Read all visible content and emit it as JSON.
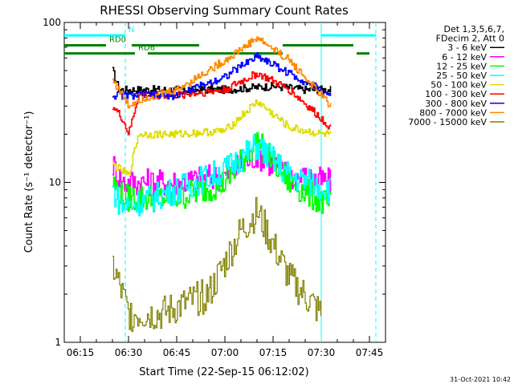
{
  "chart_data": {
    "type": "line",
    "title": "RHESSI Observing Summary Count Rates",
    "xlabel": "Start Time (22-Sep-15 06:12:02)",
    "ylabel": "Count Rate (s⁻¹ detector⁻¹)",
    "y_scale": "log",
    "ylim": [
      1,
      100
    ],
    "xlim": [
      "06:10",
      "07:50"
    ],
    "x_ticks": [
      "06:15",
      "06:30",
      "06:45",
      "07:00",
      "07:15",
      "07:30",
      "07:45"
    ],
    "y_ticks": [
      1,
      10,
      100
    ],
    "footer_date": "31-Oct-2021 10:42",
    "legend_position": "right",
    "legend_header": [
      "Det 1,3,5,6,7,",
      "FDecim 2, Att 0"
    ],
    "series": [
      {
        "name": "3 - 6 keV",
        "color": "#000000",
        "points": [
          [
            "06:25",
            50
          ],
          [
            "06:27",
            38
          ],
          [
            "06:33",
            38
          ],
          [
            "06:45",
            38
          ],
          [
            "07:00",
            38
          ],
          [
            "07:15",
            40
          ],
          [
            "07:25",
            38
          ],
          [
            "07:33",
            38
          ]
        ]
      },
      {
        "name": "6 - 12 keV",
        "color": "#ff00ff",
        "points": [
          [
            "06:25",
            13
          ],
          [
            "06:28",
            10
          ],
          [
            "06:45",
            10
          ],
          [
            "07:00",
            11
          ],
          [
            "07:10",
            15
          ],
          [
            "07:20",
            11
          ],
          [
            "07:33",
            10
          ]
        ]
      },
      {
        "name": "12 - 25 keV",
        "color": "#00ff00",
        "points": [
          [
            "06:25",
            10
          ],
          [
            "06:28",
            8
          ],
          [
            "06:45",
            8
          ],
          [
            "07:00",
            10
          ],
          [
            "07:10",
            18
          ],
          [
            "07:20",
            10
          ],
          [
            "07:33",
            7
          ]
        ]
      },
      {
        "name": "25 - 50 keV",
        "color": "#00ffff",
        "points": [
          [
            "06:25",
            9
          ],
          [
            "06:28",
            7
          ],
          [
            "06:45",
            9
          ],
          [
            "07:00",
            12
          ],
          [
            "07:10",
            17
          ],
          [
            "07:20",
            11
          ],
          [
            "07:33",
            9
          ]
        ]
      },
      {
        "name": "50 - 100 keV",
        "color": "#dddd00",
        "points": [
          [
            "06:25",
            13
          ],
          [
            "06:30",
            11
          ],
          [
            "06:33",
            20
          ],
          [
            "06:45",
            20
          ],
          [
            "07:00",
            21
          ],
          [
            "07:10",
            32
          ],
          [
            "07:20",
            22
          ],
          [
            "07:30",
            20
          ],
          [
            "07:33",
            20
          ]
        ]
      },
      {
        "name": "100 - 300 keV",
        "color": "#ff0000",
        "points": [
          [
            "06:25",
            30
          ],
          [
            "06:28",
            25
          ],
          [
            "06:30",
            20
          ],
          [
            "06:33",
            35
          ],
          [
            "06:45",
            35
          ],
          [
            "07:00",
            38
          ],
          [
            "07:10",
            48
          ],
          [
            "07:20",
            38
          ],
          [
            "07:30",
            25
          ],
          [
            "07:33",
            22
          ]
        ]
      },
      {
        "name": "300 - 800 keV",
        "color": "#0000ff",
        "points": [
          [
            "06:25",
            35
          ],
          [
            "06:33",
            35
          ],
          [
            "06:45",
            35
          ],
          [
            "07:00",
            46
          ],
          [
            "07:10",
            62
          ],
          [
            "07:20",
            48
          ],
          [
            "07:33",
            35
          ]
        ]
      },
      {
        "name": "800 - 7000 keV",
        "color": "#ff8800",
        "points": [
          [
            "06:25",
            44
          ],
          [
            "06:30",
            30
          ],
          [
            "06:33",
            33
          ],
          [
            "06:45",
            38
          ],
          [
            "07:00",
            58
          ],
          [
            "07:10",
            80
          ],
          [
            "07:20",
            58
          ],
          [
            "07:33",
            30
          ]
        ]
      },
      {
        "name": "7000 - 15000 keV",
        "color": "#808000",
        "points": [
          [
            "06:25",
            3
          ],
          [
            "06:30",
            1.5
          ],
          [
            "06:40",
            1.5
          ],
          [
            "06:55",
            2
          ],
          [
            "07:05",
            5
          ],
          [
            "07:10",
            6.5
          ],
          [
            "07:20",
            2.5
          ],
          [
            "07:30",
            1.5
          ]
        ]
      }
    ],
    "flag_lines": [
      {
        "label": "RD0",
        "color": "#008000",
        "level": 72,
        "segments": [
          [
            "06:10",
            "06:23"
          ],
          [
            "06:31",
            "06:52"
          ],
          [
            "07:18",
            "07:40"
          ]
        ]
      },
      {
        "label": "RD6",
        "color": "#008000",
        "level": 64,
        "segments": [
          [
            "06:10",
            "06:32"
          ],
          [
            "06:36",
            "07:18"
          ],
          [
            "07:41",
            "07:45"
          ]
        ]
      },
      {
        "label": "N",
        "color": "#00ffff",
        "level": 83,
        "segments": [
          [
            "06:10",
            "06:29"
          ],
          [
            "07:30",
            "07:47"
          ]
        ]
      }
    ],
    "vertical_markers": [
      {
        "time": "06:29",
        "color": "#00ffff",
        "style": "dashed"
      },
      {
        "time": "07:47",
        "color": "#00ffff",
        "style": "dashed"
      },
      {
        "time": "07:30",
        "color": "#00ffff",
        "style": "solid"
      }
    ]
  }
}
